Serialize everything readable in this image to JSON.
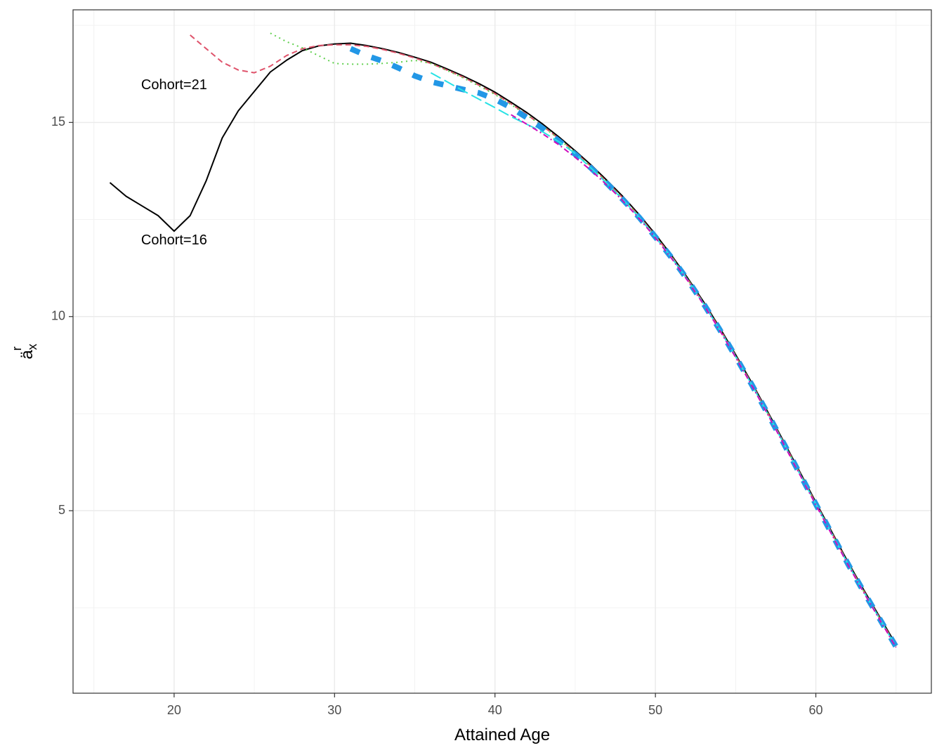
{
  "chart_data": {
    "type": "line",
    "xlabel": "Attained Age",
    "ylabel": "ä",
    "ylabel_sup": "r",
    "ylabel_sub": "x",
    "xlim": [
      13.7,
      67.2
    ],
    "ylim": [
      0.3,
      17.9
    ],
    "x_ticks_major": [
      20,
      30,
      40,
      50,
      60
    ],
    "x_ticks_minor": [
      15,
      25,
      35,
      45,
      55,
      65
    ],
    "y_ticks_major": [
      5,
      10,
      15
    ],
    "y_ticks_minor": [
      2.5,
      7.5,
      12.5,
      17.5
    ],
    "grid": true,
    "annotations": [
      {
        "text": "Cohort=21",
        "x": 20,
        "y": 15.95
      },
      {
        "text": "Cohort=16",
        "x": 20,
        "y": 11.95
      }
    ],
    "series": [
      {
        "color": "#000000",
        "dash": "",
        "width": 2,
        "points": [
          [
            16,
            13.45
          ],
          [
            17,
            13.1
          ],
          [
            18,
            12.85
          ],
          [
            19,
            12.6
          ],
          [
            20,
            12.2
          ],
          [
            21,
            12.6
          ],
          [
            22,
            13.5
          ],
          [
            23,
            14.6
          ],
          [
            24,
            15.3
          ],
          [
            25,
            15.8
          ],
          [
            26,
            16.3
          ],
          [
            27,
            16.6
          ],
          [
            28,
            16.85
          ],
          [
            29,
            16.97
          ],
          [
            30,
            17.02
          ],
          [
            31,
            17.04
          ],
          [
            32,
            16.98
          ],
          [
            33,
            16.9
          ],
          [
            34,
            16.8
          ],
          [
            35,
            16.68
          ],
          [
            36,
            16.55
          ],
          [
            37,
            16.38
          ],
          [
            38,
            16.2
          ],
          [
            39,
            16.0
          ],
          [
            40,
            15.78
          ],
          [
            41,
            15.52
          ],
          [
            42,
            15.25
          ],
          [
            43,
            14.95
          ],
          [
            44,
            14.62
          ],
          [
            45,
            14.27
          ],
          [
            46,
            13.9
          ],
          [
            47,
            13.5
          ],
          [
            48,
            13.08
          ],
          [
            49,
            12.62
          ],
          [
            50,
            12.12
          ],
          [
            51,
            11.58
          ],
          [
            52,
            11.0
          ],
          [
            53,
            10.38
          ],
          [
            54,
            9.72
          ],
          [
            55,
            9.02
          ],
          [
            56,
            8.3
          ],
          [
            57,
            7.55
          ],
          [
            58,
            6.78
          ],
          [
            59,
            6.0
          ],
          [
            60,
            5.22
          ],
          [
            61,
            4.45
          ],
          [
            62,
            3.68
          ],
          [
            63,
            2.95
          ],
          [
            64,
            2.25
          ],
          [
            65,
            1.55
          ]
        ]
      },
      {
        "color": "#df536b",
        "dash": "8 5",
        "width": 2,
        "points": [
          [
            21,
            17.25
          ],
          [
            22,
            16.9
          ],
          [
            23,
            16.55
          ],
          [
            24,
            16.35
          ],
          [
            25,
            16.28
          ],
          [
            26,
            16.45
          ],
          [
            27,
            16.72
          ],
          [
            28,
            16.9
          ],
          [
            29,
            16.98
          ],
          [
            30,
            17.0
          ],
          [
            31,
            17.0
          ],
          [
            32,
            16.96
          ],
          [
            33,
            16.88
          ],
          [
            34,
            16.78
          ],
          [
            35,
            16.66
          ],
          [
            36,
            16.52
          ],
          [
            37,
            16.35
          ],
          [
            38,
            16.17
          ],
          [
            39,
            15.96
          ],
          [
            40,
            15.74
          ],
          [
            41,
            15.48
          ],
          [
            42,
            15.2
          ],
          [
            43,
            14.9
          ],
          [
            44,
            14.58
          ],
          [
            45,
            14.23
          ],
          [
            46,
            13.86
          ],
          [
            47,
            13.46
          ],
          [
            48,
            13.04
          ],
          [
            49,
            12.58
          ],
          [
            50,
            12.08
          ],
          [
            51,
            11.55
          ],
          [
            52,
            10.97
          ],
          [
            53,
            10.35
          ],
          [
            54,
            9.69
          ],
          [
            55,
            8.99
          ],
          [
            56,
            8.27
          ],
          [
            57,
            7.52
          ],
          [
            58,
            6.75
          ],
          [
            59,
            5.97
          ],
          [
            60,
            5.19
          ],
          [
            61,
            4.42
          ],
          [
            62,
            3.65
          ],
          [
            63,
            2.92
          ],
          [
            64,
            2.22
          ],
          [
            65,
            1.52
          ]
        ]
      },
      {
        "color": "#61d04f",
        "dash": "2 5",
        "width": 2,
        "points": [
          [
            26,
            17.3
          ],
          [
            27,
            17.08
          ],
          [
            28,
            16.92
          ],
          [
            29,
            16.72
          ],
          [
            30,
            16.52
          ],
          [
            31,
            16.5
          ],
          [
            32,
            16.5
          ],
          [
            33,
            16.52
          ],
          [
            34,
            16.55
          ],
          [
            35,
            16.6
          ],
          [
            36,
            16.52
          ],
          [
            37,
            16.34
          ],
          [
            38,
            16.15
          ],
          [
            39,
            15.94
          ],
          [
            40,
            15.72
          ],
          [
            41,
            15.46
          ],
          [
            42,
            15.19
          ],
          [
            43,
            14.89
          ],
          [
            44,
            14.57
          ],
          [
            45,
            14.22
          ],
          [
            46,
            13.85
          ],
          [
            47,
            13.45
          ],
          [
            48,
            13.03
          ],
          [
            49,
            12.57
          ],
          [
            50,
            12.07
          ],
          [
            51,
            11.54
          ],
          [
            52,
            10.96
          ],
          [
            53,
            10.34
          ],
          [
            54,
            9.68
          ],
          [
            55,
            8.98
          ],
          [
            56,
            8.26
          ],
          [
            57,
            7.51
          ],
          [
            58,
            6.74
          ],
          [
            59,
            5.96
          ],
          [
            60,
            5.18
          ],
          [
            61,
            4.41
          ],
          [
            62,
            3.64
          ],
          [
            63,
            2.91
          ],
          [
            64,
            2.21
          ],
          [
            65,
            1.51
          ]
        ]
      },
      {
        "color": "#2297e6",
        "dash": "14 18",
        "width": 8,
        "points": [
          [
            31,
            16.9
          ],
          [
            32,
            16.72
          ],
          [
            33,
            16.58
          ],
          [
            34,
            16.4
          ],
          [
            35,
            16.2
          ],
          [
            36,
            16.05
          ],
          [
            37,
            15.95
          ],
          [
            38,
            15.85
          ],
          [
            39,
            15.76
          ],
          [
            40,
            15.6
          ],
          [
            41,
            15.38
          ],
          [
            42,
            15.12
          ],
          [
            43,
            14.84
          ],
          [
            44,
            14.52
          ],
          [
            45,
            14.18
          ],
          [
            46,
            13.82
          ],
          [
            47,
            13.42
          ],
          [
            48,
            13.0
          ],
          [
            49,
            12.55
          ],
          [
            50,
            12.05
          ],
          [
            51,
            11.52
          ],
          [
            52,
            10.95
          ],
          [
            53,
            10.33
          ],
          [
            54,
            9.67
          ],
          [
            55,
            8.97
          ],
          [
            56,
            8.25
          ],
          [
            57,
            7.5
          ],
          [
            58,
            6.73
          ],
          [
            59,
            5.95
          ],
          [
            60,
            5.17
          ],
          [
            61,
            4.4
          ],
          [
            62,
            3.63
          ],
          [
            63,
            2.9
          ],
          [
            64,
            2.2
          ],
          [
            65,
            1.5
          ]
        ]
      },
      {
        "color": "#28e2e5",
        "dash": "16 6",
        "width": 2,
        "points": [
          [
            36,
            16.28
          ],
          [
            37,
            16.05
          ],
          [
            38,
            15.82
          ],
          [
            39,
            15.6
          ],
          [
            40,
            15.38
          ],
          [
            41,
            15.15
          ],
          [
            42,
            14.95
          ],
          [
            43,
            14.75
          ],
          [
            44,
            14.5
          ],
          [
            45,
            14.2
          ],
          [
            46,
            13.82
          ],
          [
            47,
            13.42
          ],
          [
            48,
            13.0
          ],
          [
            49,
            12.55
          ],
          [
            50,
            12.05
          ],
          [
            51,
            11.52
          ],
          [
            52,
            10.95
          ],
          [
            53,
            10.33
          ],
          [
            54,
            9.67
          ],
          [
            55,
            8.97
          ],
          [
            56,
            8.25
          ],
          [
            57,
            7.5
          ],
          [
            58,
            6.73
          ],
          [
            59,
            5.95
          ],
          [
            60,
            5.17
          ],
          [
            61,
            4.4
          ],
          [
            62,
            3.63
          ],
          [
            63,
            2.9
          ],
          [
            64,
            2.2
          ],
          [
            65,
            1.5
          ]
        ]
      },
      {
        "color": "#cd0bbc",
        "dash": "8 4 2 4",
        "width": 2,
        "points": [
          [
            41,
            15.2
          ],
          [
            42,
            14.95
          ],
          [
            43,
            14.7
          ],
          [
            44,
            14.42
          ],
          [
            45,
            14.1
          ],
          [
            46,
            13.76
          ],
          [
            47,
            13.38
          ],
          [
            48,
            12.97
          ],
          [
            49,
            12.52
          ],
          [
            50,
            12.03
          ],
          [
            51,
            11.5
          ],
          [
            52,
            10.93
          ],
          [
            53,
            10.31
          ],
          [
            54,
            9.65
          ],
          [
            55,
            8.95
          ],
          [
            56,
            8.23
          ],
          [
            57,
            7.48
          ],
          [
            58,
            6.71
          ],
          [
            59,
            5.93
          ],
          [
            60,
            5.15
          ],
          [
            61,
            4.38
          ],
          [
            62,
            3.61
          ],
          [
            63,
            2.88
          ],
          [
            64,
            2.18
          ],
          [
            65,
            1.48
          ]
        ]
      }
    ]
  }
}
